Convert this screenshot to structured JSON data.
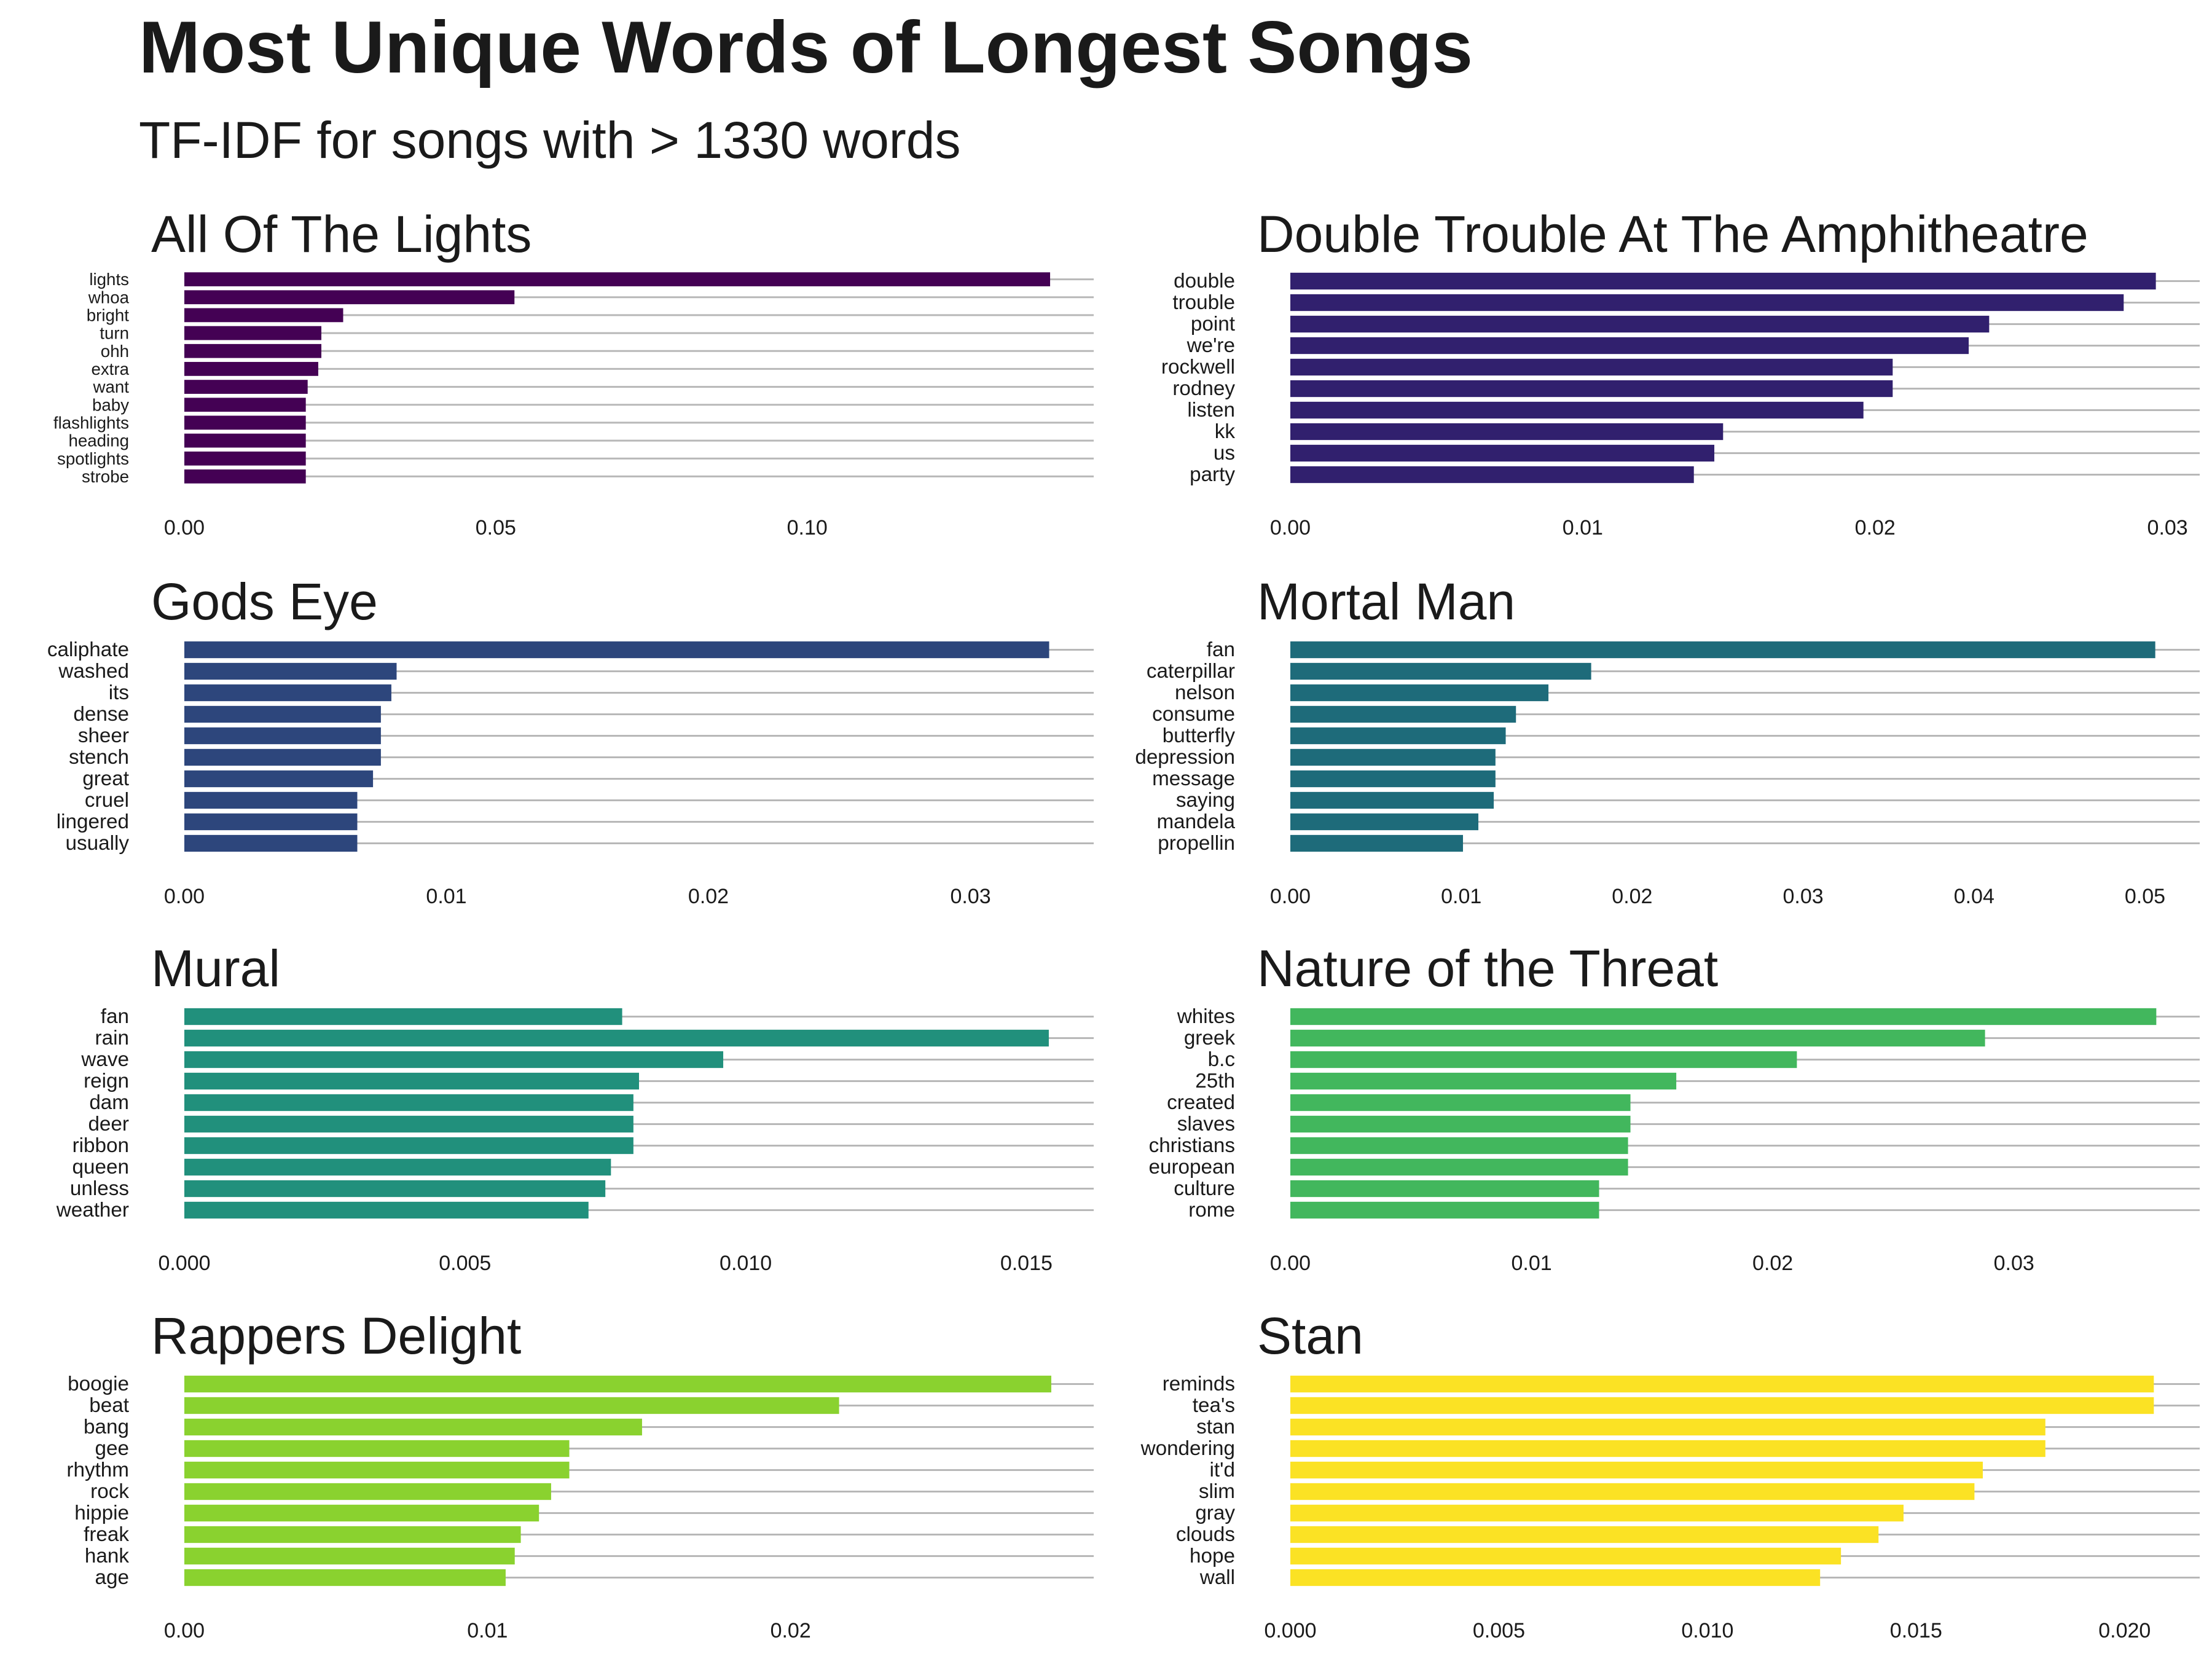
{
  "title": "Most Unique Words of Longest Songs",
  "subtitle": "TF-IDF for songs with > 1330 words",
  "chart_data": [
    {
      "type": "bar",
      "title": "All Of The Lights",
      "color": "#440154",
      "categories": [
        "lights",
        "whoa",
        "bright",
        "turn",
        "ohh",
        "extra",
        "want",
        "baby",
        "flashlights",
        "heading",
        "spotlights",
        "strobe"
      ],
      "values": [
        0.139,
        0.053,
        0.0255,
        0.022,
        0.022,
        0.0215,
        0.0198,
        0.0195,
        0.0195,
        0.0195,
        0.0195,
        0.0195
      ],
      "xlim": [
        0,
        0.146
      ],
      "ticks": [
        0,
        0.05,
        0.1
      ],
      "tick_labels": [
        "0.00",
        "0.05",
        "0.10"
      ]
    },
    {
      "type": "bar",
      "title": "Double Trouble At The Amphitheatre",
      "color": "#31206e",
      "categories": [
        "double",
        "trouble",
        "point",
        "we're",
        "rockwell",
        "rodney",
        "listen",
        "kk",
        "us",
        "party"
      ],
      "values": [
        0.0296,
        0.0285,
        0.0239,
        0.0232,
        0.0206,
        0.0206,
        0.0196,
        0.0148,
        0.0145,
        0.0138
      ],
      "xlim": [
        0,
        0.0311
      ],
      "ticks": [
        0,
        0.01,
        0.02,
        0.03
      ],
      "tick_labels": [
        "0.00",
        "0.01",
        "0.02",
        "0.03"
      ]
    },
    {
      "type": "bar",
      "title": "Gods Eye",
      "color": "#2d467c",
      "categories": [
        "caliphate",
        "washed",
        "its",
        "dense",
        "sheer",
        "stench",
        "great",
        "cruel",
        "lingered",
        "usually"
      ],
      "values": [
        0.033,
        0.0081,
        0.0079,
        0.0075,
        0.0075,
        0.0075,
        0.0072,
        0.0066,
        0.0066,
        0.0066
      ],
      "xlim": [
        0,
        0.0347
      ],
      "ticks": [
        0,
        0.01,
        0.02,
        0.03
      ],
      "tick_labels": [
        "0.00",
        "0.01",
        "0.02",
        "0.03"
      ]
    },
    {
      "type": "bar",
      "title": "Mortal Man",
      "color": "#1e6b7a",
      "categories": [
        "fan",
        "caterpillar",
        "nelson",
        "consume",
        "butterfly",
        "depression",
        "message",
        "saying",
        "mandela",
        "propellin"
      ],
      "values": [
        0.0506,
        0.0176,
        0.0151,
        0.0132,
        0.0126,
        0.012,
        0.012,
        0.0119,
        0.011,
        0.0101
      ],
      "xlim": [
        0,
        0.0532
      ],
      "ticks": [
        0,
        0.01,
        0.02,
        0.03,
        0.04,
        0.05
      ],
      "tick_labels": [
        "0.00",
        "0.01",
        "0.02",
        "0.03",
        "0.04",
        "0.05"
      ]
    },
    {
      "type": "bar",
      "title": "Mural",
      "color": "#21907c",
      "categories": [
        "fan",
        "rain",
        "wave",
        "reign",
        "dam",
        "deer",
        "ribbon",
        "queen",
        "unless",
        "weather"
      ],
      "values": [
        0.0078,
        0.0154,
        0.0096,
        0.0081,
        0.008,
        0.008,
        0.008,
        0.0076,
        0.0075,
        0.0072
      ],
      "xlim": [
        0,
        0.0162
      ],
      "ticks": [
        0,
        0.005,
        0.01,
        0.015
      ],
      "tick_labels": [
        "0.000",
        "0.005",
        "0.010",
        "0.015"
      ]
    },
    {
      "type": "bar",
      "title": "Nature of the Threat",
      "color": "#42b75d",
      "categories": [
        "whites",
        "greek",
        "b.c",
        "25th",
        "created",
        "slaves",
        "christians",
        "european",
        "culture",
        "rome"
      ],
      "values": [
        0.0359,
        0.0288,
        0.021,
        0.016,
        0.0141,
        0.0141,
        0.014,
        0.014,
        0.0128,
        0.0128
      ],
      "xlim": [
        0,
        0.0377
      ],
      "ticks": [
        0,
        0.01,
        0.02,
        0.03
      ],
      "tick_labels": [
        "0.00",
        "0.01",
        "0.02",
        "0.03"
      ]
    },
    {
      "type": "bar",
      "title": "Rappers Delight",
      "color": "#8ad22f",
      "categories": [
        "boogie",
        "beat",
        "bang",
        "gee",
        "rhythm",
        "rock",
        "hippie",
        "freak",
        "hank",
        "age"
      ],
      "values": [
        0.0286,
        0.0216,
        0.0151,
        0.0127,
        0.0127,
        0.0121,
        0.0117,
        0.0111,
        0.0109,
        0.0106
      ],
      "xlim": [
        0,
        0.03
      ],
      "ticks": [
        0,
        0.01,
        0.02
      ],
      "tick_labels": [
        "0.00",
        "0.01",
        "0.02"
      ]
    },
    {
      "type": "bar",
      "title": "Stan",
      "color": "#fbe224",
      "categories": [
        "reminds",
        "tea's",
        "stan",
        "wondering",
        "it'd",
        "slim",
        "gray",
        "clouds",
        "hope",
        "wall"
      ],
      "values": [
        0.0207,
        0.0207,
        0.0181,
        0.0181,
        0.0166,
        0.0164,
        0.0147,
        0.0141,
        0.0132,
        0.0127
      ],
      "xlim": [
        0,
        0.0218
      ],
      "ticks": [
        0,
        0.005,
        0.01,
        0.015,
        0.02
      ],
      "tick_labels": [
        "0.000",
        "0.005",
        "0.010",
        "0.015",
        "0.020"
      ]
    }
  ]
}
